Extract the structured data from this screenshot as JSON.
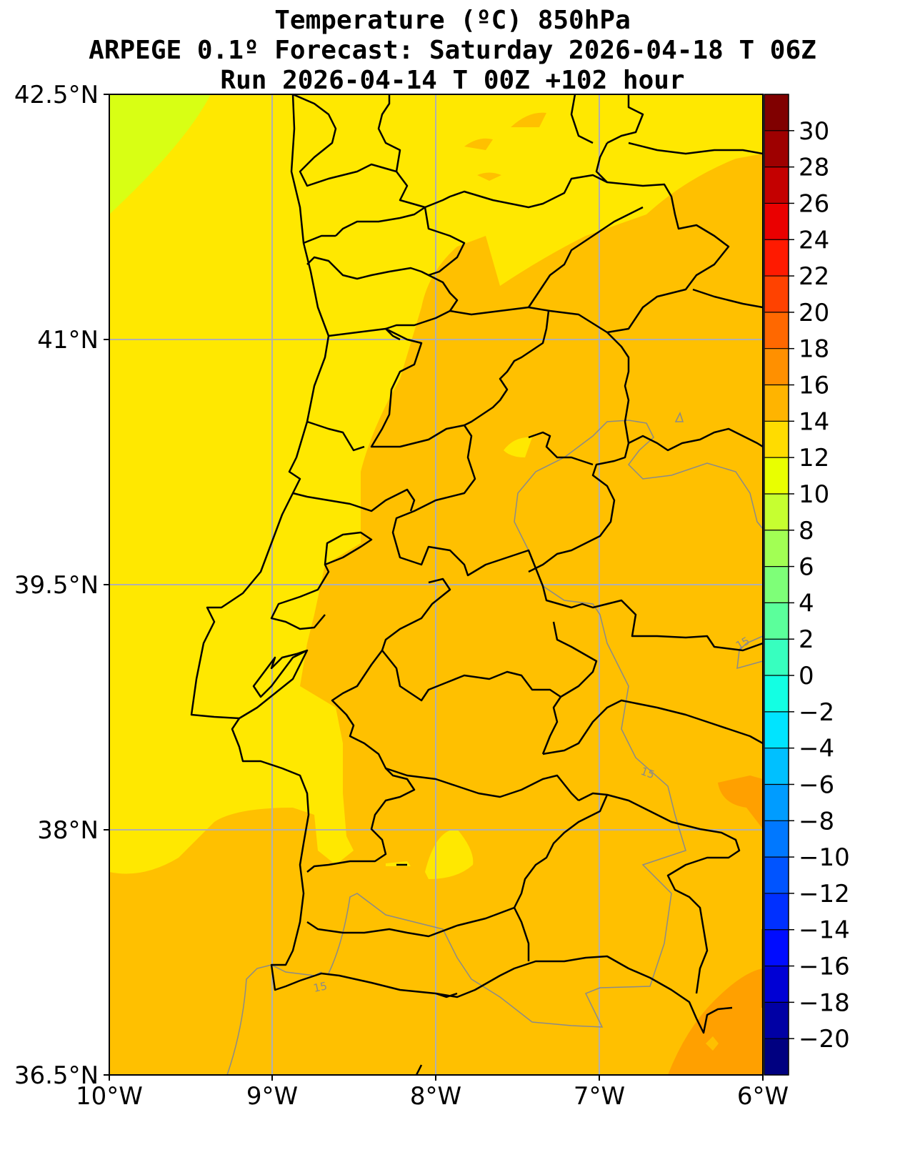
{
  "title": {
    "line1": "Temperature (ºC) 850hPa",
    "line2": "ARPEGE 0.1º Forecast: Saturday 2026-04-18 T 06Z",
    "line3": "Run 2026-04-14 T 00Z +102 hour"
  },
  "map": {
    "x_ticks": [
      "10°W",
      "9°W",
      "8°W",
      "7°W",
      "6°W"
    ],
    "y_ticks": [
      "42.5°N",
      "41°N",
      "39.5°N",
      "38°N",
      "36.5°N"
    ],
    "extent": {
      "lon": [
        -10,
        -6
      ],
      "lat": [
        36.5,
        42.5
      ]
    },
    "grid": true,
    "contour_label": "15",
    "fill_colors": {
      "10_12": "#d8ff14",
      "12_14": "#ffe800",
      "14_16": "#ffc000",
      "16_18": "#ffa000"
    }
  },
  "colorbar": {
    "ticks": [
      "30",
      "28",
      "26",
      "24",
      "22",
      "20",
      "18",
      "16",
      "14",
      "12",
      "10",
      "8",
      "6",
      "4",
      "2",
      "0",
      "−2",
      "−4",
      "−6",
      "−8",
      "−10",
      "−12",
      "−14",
      "−16",
      "−18",
      "−20"
    ],
    "colors": [
      "#800000",
      "#9e0000",
      "#c40000",
      "#ea0000",
      "#ff1a00",
      "#ff4200",
      "#ff6800",
      "#ff9000",
      "#ffb400",
      "#ffdc00",
      "#e9ff00",
      "#c6ff30",
      "#a2ff54",
      "#7eff78",
      "#5bff9b",
      "#37ffbf",
      "#13ffe3",
      "#00e4ff",
      "#00c0ff",
      "#009cff",
      "#0078ff",
      "#0054ff",
      "#0030ff",
      "#000cff",
      "#0000d4",
      "#0000a4",
      "#000080"
    ]
  }
}
